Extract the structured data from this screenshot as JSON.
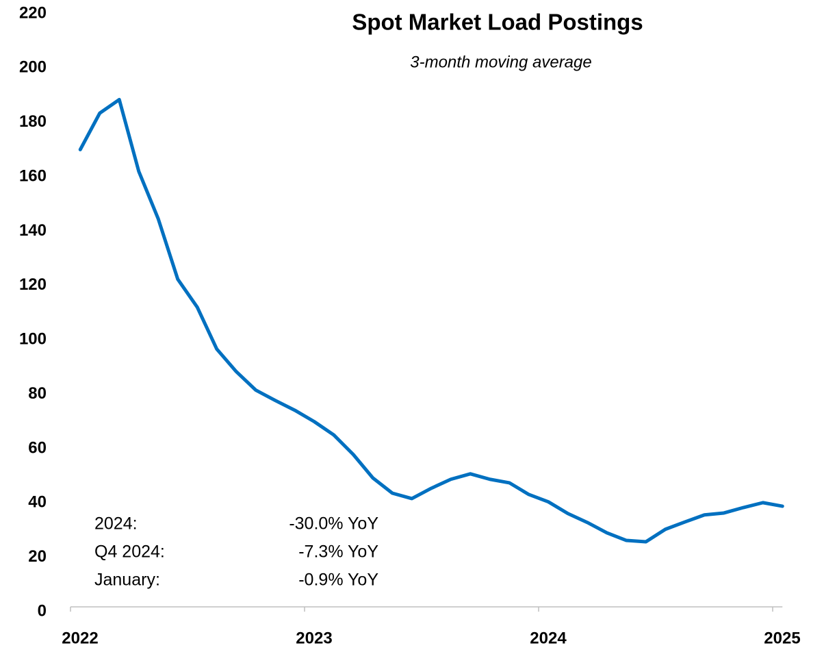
{
  "chart_data": {
    "type": "line",
    "title": "Spot Market Load Postings",
    "subtitle": "3-month moving average",
    "categories": [
      "2022",
      null,
      null,
      null,
      null,
      null,
      null,
      null,
      null,
      null,
      null,
      null,
      "2023",
      null,
      null,
      null,
      null,
      null,
      null,
      null,
      null,
      null,
      null,
      null,
      "2024",
      null,
      null,
      null,
      null,
      null,
      null,
      null,
      null,
      null,
      null,
      null,
      "2025"
    ],
    "series": [
      {
        "name": "Spot Market Load Postings",
        "color": "#0070c0",
        "values": [
          170,
          183.4,
          188.4,
          162,
          144.5,
          122.3,
          112,
          96.6,
          88.3,
          81.5,
          77.7,
          74.1,
          69.9,
          65,
          57.8,
          49.2,
          43.6,
          41.6,
          45.4,
          48.7,
          50.7,
          48.7,
          47.4,
          43.1,
          40.4,
          36.1,
          32.8,
          29,
          26.2,
          25.7,
          30.3,
          33,
          35.6,
          36.3,
          38.3,
          40.1,
          38.8
        ]
      }
    ],
    "ylim": [
      0,
      220
    ],
    "yticks": [
      0,
      20,
      40,
      60,
      80,
      100,
      120,
      140,
      160,
      180,
      200,
      220
    ],
    "grid": false,
    "annotations": [
      {
        "label": "2024:",
        "text": "-30.0% YoY"
      },
      {
        "label": "Q4 2024:",
        "text": "-7.3% YoY"
      },
      {
        "label": "January:",
        "text": "-0.9% YoY"
      }
    ]
  }
}
